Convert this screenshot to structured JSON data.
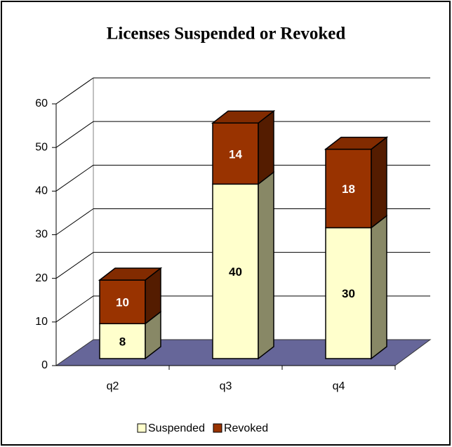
{
  "chart_data": {
    "type": "bar",
    "stacked": true,
    "title": "Licenses Suspended or Revoked",
    "categories": [
      "q2",
      "q3",
      "q4"
    ],
    "series": [
      {
        "name": "Suspended",
        "color": "#ffffcc",
        "values": [
          8,
          40,
          30
        ]
      },
      {
        "name": "Revoked",
        "color": "#993300",
        "values": [
          10,
          14,
          18
        ]
      }
    ],
    "ylim": [
      0,
      60
    ],
    "yticks": [
      0,
      10,
      20,
      30,
      40,
      50,
      60
    ],
    "grid": true,
    "legend": "bottom"
  }
}
